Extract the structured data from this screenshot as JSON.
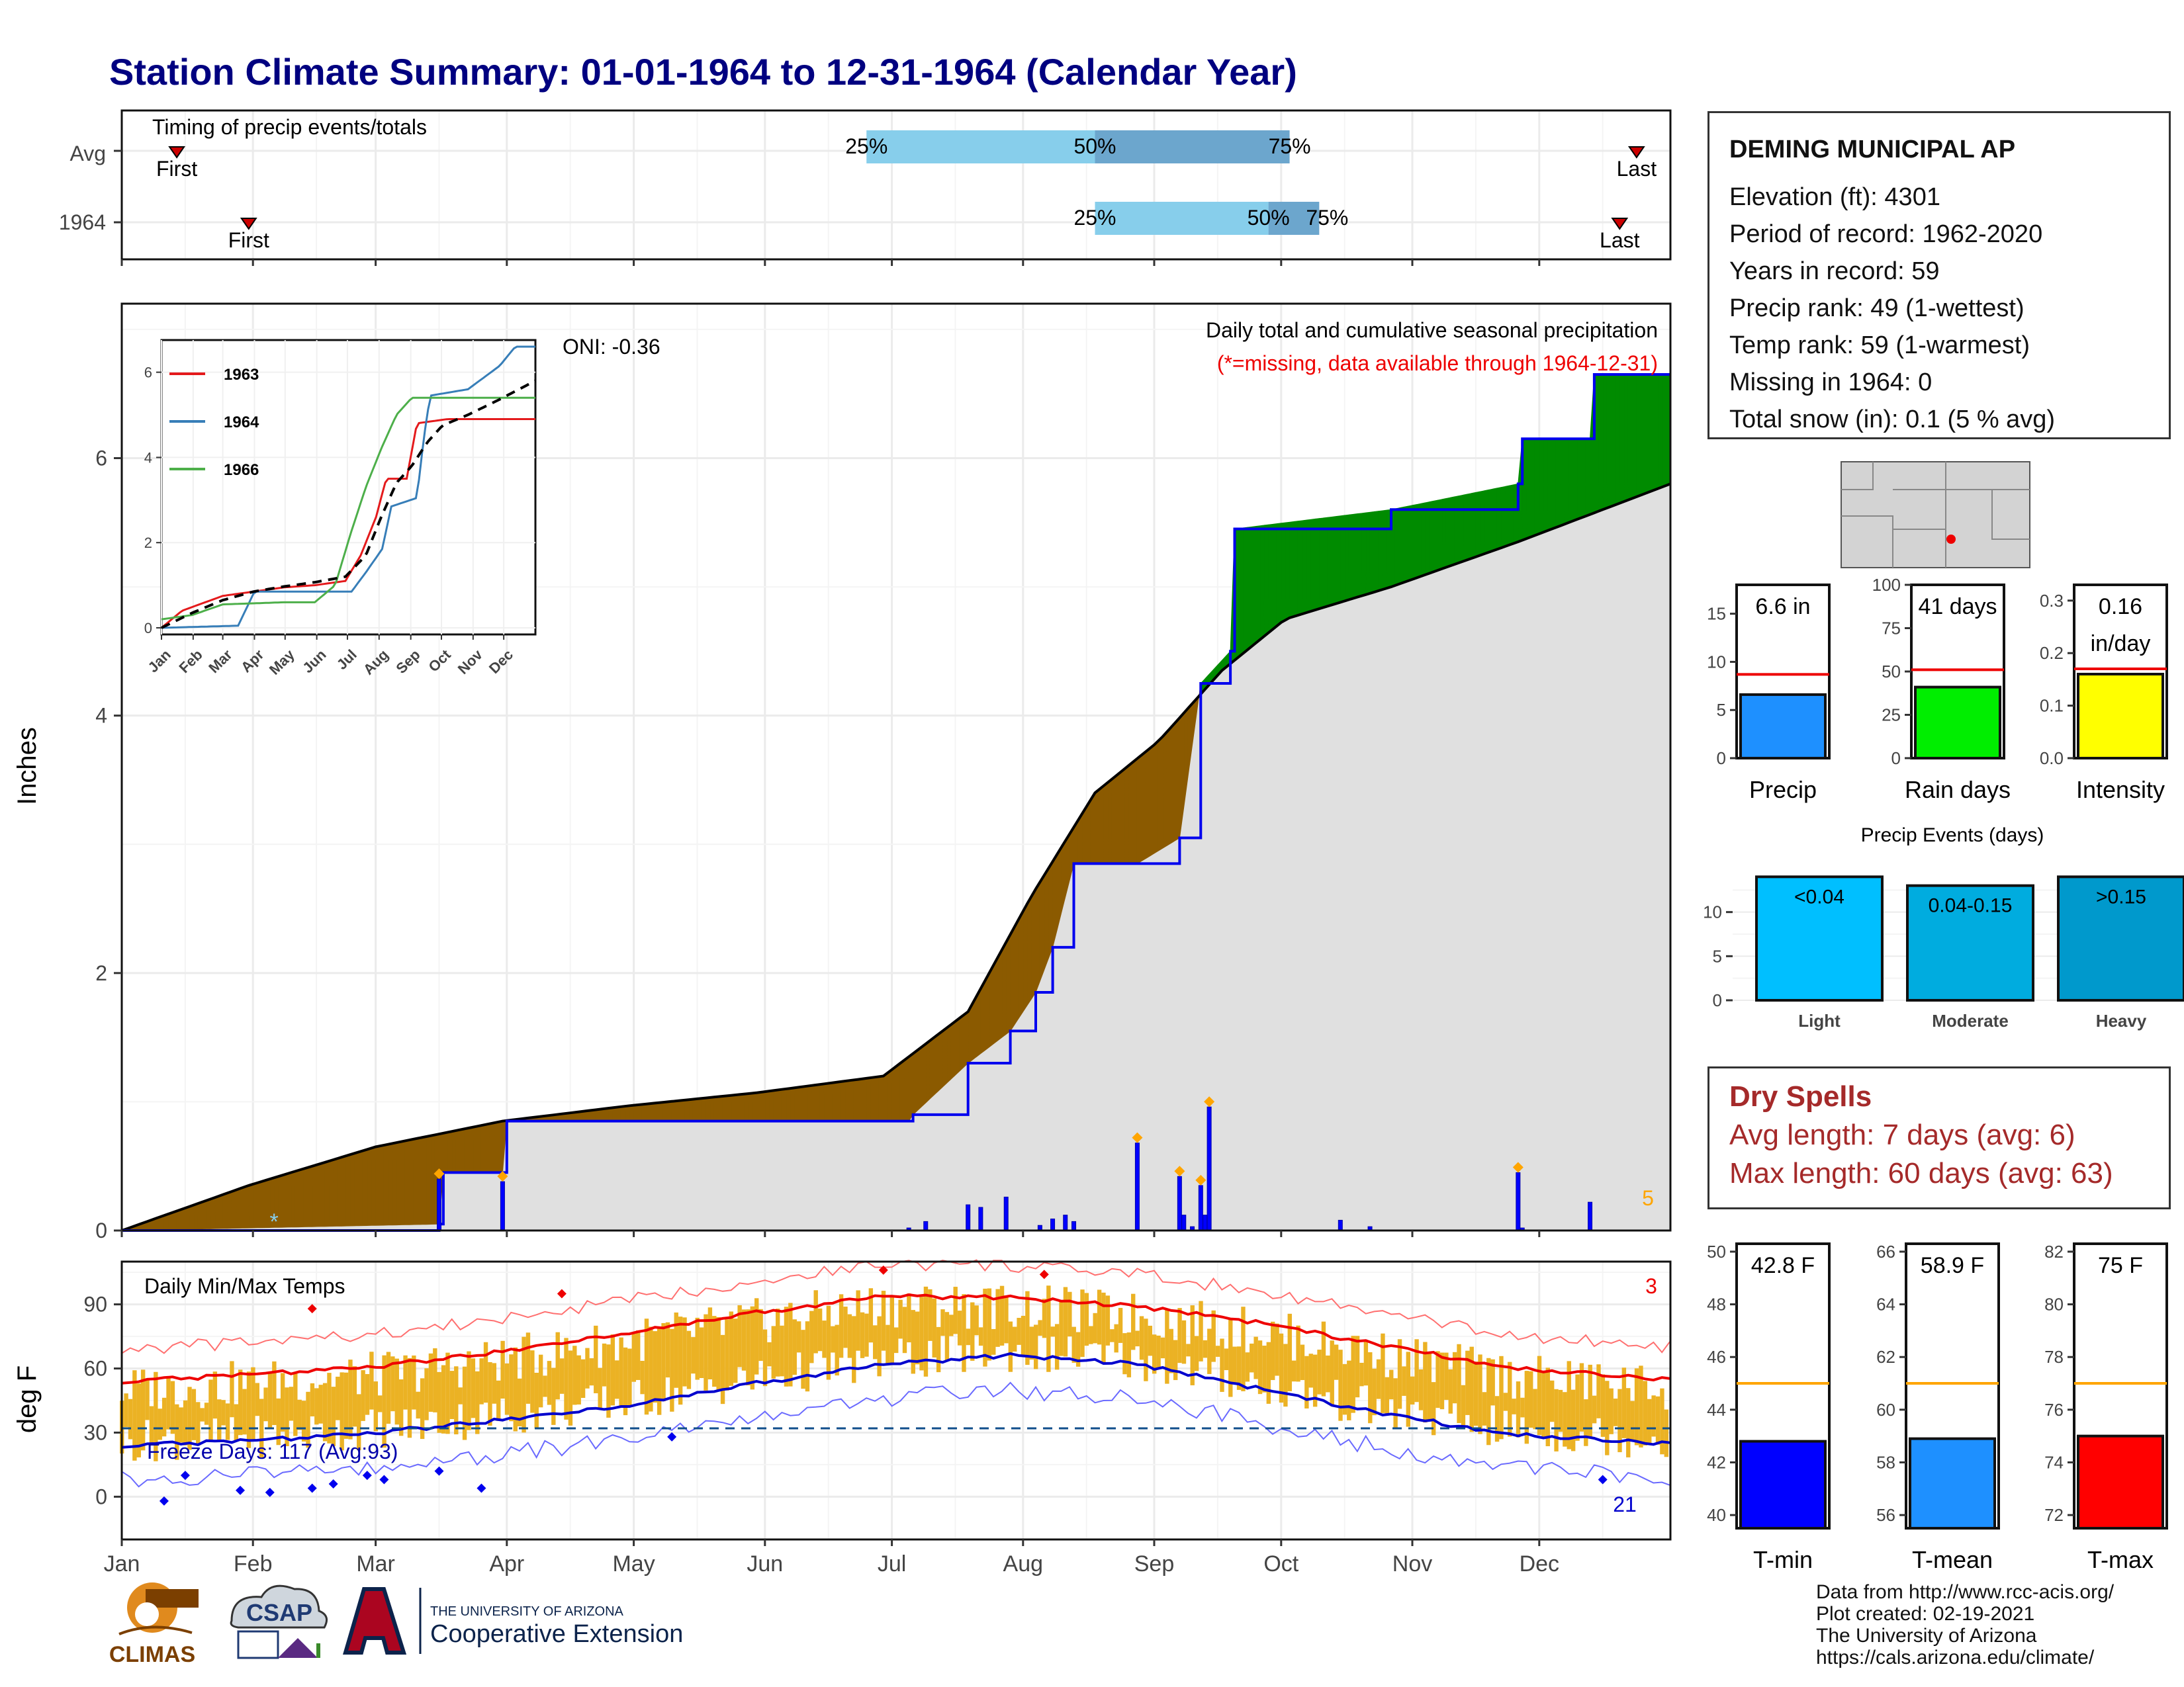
{
  "title": "Station Climate Summary: 01-01-1964 to 12-31-1964 (Calendar Year)",
  "timing": {
    "title": "Timing of precip events/totals",
    "rows": [
      {
        "label": "Avg",
        "first_doy": 13,
        "last_doy": 358,
        "p25_doy": 176,
        "p50_doy": 230,
        "p75_doy": 276
      },
      {
        "label": "1964",
        "first_doy": 30,
        "last_doy": 354,
        "p25_doy": 230,
        "p50_doy": 271,
        "p75_doy": 283
      }
    ],
    "labels": {
      "first": "First",
      "last": "Last",
      "p25": "25%",
      "p50": "50%",
      "p75": "75%"
    }
  },
  "precip_chart": {
    "title": "Daily total and cumulative seasonal precipitation",
    "subtitle": "(*=missing, data available through 1964-12-31)",
    "oni": "ONI: -0.36",
    "ylabel": "Inches",
    "y_ticks": [
      "0",
      "2",
      "4",
      "6"
    ],
    "ylim": [
      0,
      7.2
    ],
    "count_label": "5"
  },
  "chart_data": [
    {
      "type": "area",
      "title": "Daily total and cumulative seasonal precipitation",
      "ylabel": "Inches",
      "ylim": [
        0,
        7.2
      ],
      "series": [
        {
          "name": "Average cumulative",
          "x_doy": [
            0,
            30,
            60,
            90,
            120,
            150,
            180,
            200,
            215,
            230,
            245,
            260,
            275,
            300,
            330,
            366
          ],
          "values": [
            0.0,
            0.35,
            0.65,
            0.85,
            0.97,
            1.07,
            1.2,
            1.7,
            2.6,
            3.4,
            3.8,
            4.35,
            4.75,
            5.0,
            5.35,
            5.8
          ]
        },
        {
          "name": "1964 cumulative",
          "x_doy": [
            0,
            75,
            76,
            90,
            91,
            186,
            187,
            200,
            210,
            216,
            220,
            225,
            240,
            250,
            255,
            262,
            263,
            300,
            330,
            331,
            347,
            348,
            366
          ],
          "values": [
            0.0,
            0.05,
            0.45,
            0.45,
            0.85,
            0.85,
            0.9,
            1.3,
            1.55,
            1.85,
            2.2,
            2.85,
            2.85,
            3.05,
            4.25,
            4.5,
            5.45,
            5.6,
            5.8,
            6.15,
            6.15,
            6.65,
            6.65
          ]
        },
        {
          "name": "Daily precip",
          "x_doy": [
            75,
            90,
            186,
            190,
            200,
            203,
            209,
            217,
            220,
            223,
            225,
            240,
            250,
            251,
            253,
            255,
            256,
            257,
            288,
            295,
            330,
            331,
            347
          ],
          "values": [
            0.4,
            0.38,
            0.02,
            0.07,
            0.2,
            0.18,
            0.26,
            0.04,
            0.09,
            0.12,
            0.07,
            0.68,
            0.42,
            0.12,
            0.03,
            0.35,
            0.12,
            0.96,
            0.08,
            0.03,
            0.45,
            0.02,
            0.22
          ]
        }
      ]
    },
    {
      "type": "line",
      "title": "Daily Min/Max Temps",
      "ylabel": "deg F",
      "ylim": [
        -20,
        110
      ],
      "series": [
        {
          "name": "Normal max",
          "x_doy": [
            0,
            30,
            60,
            90,
            120,
            150,
            180,
            210,
            240,
            270,
            300,
            330,
            366
          ],
          "values": [
            54,
            57,
            61,
            68,
            77,
            86,
            94,
            93,
            89,
            81,
            70,
            60,
            55
          ]
        },
        {
          "name": "Normal min",
          "x_doy": [
            0,
            30,
            60,
            90,
            120,
            150,
            180,
            210,
            240,
            270,
            300,
            330,
            366
          ],
          "values": [
            24,
            26,
            30,
            36,
            43,
            53,
            62,
            66,
            62,
            50,
            38,
            29,
            25
          ]
        }
      ]
    },
    {
      "type": "bar",
      "title": "Precip",
      "categories": [
        "Precip"
      ],
      "values": [
        6.6
      ],
      "avg": 8.7,
      "ylim": [
        0,
        18
      ]
    },
    {
      "type": "bar",
      "title": "Rain days",
      "categories": [
        "Rain days"
      ],
      "values": [
        41
      ],
      "avg": 51,
      "ylim": [
        0,
        100
      ]
    },
    {
      "type": "bar",
      "title": "Intensity",
      "categories": [
        "Intensity"
      ],
      "values": [
        0.16
      ],
      "avg": 0.17,
      "ylim": [
        0,
        0.33
      ]
    },
    {
      "type": "bar",
      "title": "Precip Events (days)",
      "categories": [
        "Light",
        "Moderate",
        "Heavy"
      ],
      "values": [
        14,
        13,
        14
      ],
      "ylim": [
        0,
        15
      ]
    },
    {
      "type": "bar",
      "title": "T-min",
      "categories": [
        "T-min"
      ],
      "values": [
        42.8
      ],
      "avg": 45,
      "ylim": [
        39.5,
        50.3
      ]
    },
    {
      "type": "bar",
      "title": "T-mean",
      "categories": [
        "T-mean"
      ],
      "values": [
        58.9
      ],
      "avg": 61,
      "ylim": [
        55.5,
        66.3
      ]
    },
    {
      "type": "bar",
      "title": "T-max",
      "categories": [
        "T-max"
      ],
      "values": [
        75
      ],
      "avg": 77,
      "ylim": [
        71.5,
        82.3
      ]
    }
  ],
  "inset": {
    "y_ticks": [
      "0",
      "2",
      "4",
      "6"
    ],
    "x_ticks": [
      "Jan",
      "Feb",
      "Mar",
      "Apr",
      "May",
      "Jun",
      "Jul",
      "Aug",
      "Sep",
      "Oct",
      "Nov",
      "Dec"
    ],
    "legend": [
      {
        "name": "1963",
        "color": "#e41a1c"
      },
      {
        "name": "1964",
        "color": "#377eb8"
      },
      {
        "name": "1966",
        "color": "#4daf4a"
      }
    ],
    "series": [
      {
        "name": "1963",
        "x_doy": [
          0,
          20,
          60,
          120,
          150,
          180,
          195,
          210,
          220,
          240,
          250,
          280,
          300,
          366
        ],
        "values": [
          0,
          0.4,
          0.75,
          0.95,
          1.0,
          1.1,
          1.7,
          2.6,
          3.5,
          3.5,
          4.8,
          4.9,
          4.9,
          4.9
        ]
      },
      {
        "name": "1964",
        "x_doy": [
          0,
          75,
          91,
          186,
          200,
          216,
          225,
          250,
          257,
          263,
          300,
          331,
          348,
          366
        ],
        "values": [
          0,
          0.05,
          0.85,
          0.85,
          1.3,
          1.85,
          2.85,
          3.05,
          4.5,
          5.45,
          5.6,
          6.15,
          6.65,
          6.65
        ]
      },
      {
        "name": "1966",
        "x_doy": [
          0,
          30,
          60,
          120,
          150,
          170,
          185,
          200,
          215,
          230,
          245,
          300,
          366
        ],
        "values": [
          0.2,
          0.3,
          0.55,
          0.6,
          0.6,
          1.0,
          2.2,
          3.3,
          4.2,
          5.0,
          5.4,
          5.4,
          5.4
        ]
      },
      {
        "name": "Average",
        "x_doy": [
          0,
          30,
          60,
          90,
          120,
          150,
          180,
          200,
          215,
          230,
          245,
          260,
          275,
          300,
          330,
          366
        ],
        "values": [
          0,
          0.35,
          0.65,
          0.85,
          0.97,
          1.07,
          1.2,
          1.7,
          2.6,
          3.4,
          3.8,
          4.35,
          4.75,
          5.0,
          5.35,
          5.8
        ]
      }
    ]
  },
  "temp_chart": {
    "title": "Daily Min/Max Temps",
    "ylabel": "deg F",
    "y_ticks": [
      "0",
      "30",
      "60",
      "90"
    ],
    "freeze_label": "Freeze Days: 117 (Avg:93)",
    "hot_count": "3",
    "cold_count": "21",
    "months": [
      "Jan",
      "Feb",
      "Mar",
      "Apr",
      "May",
      "Jun",
      "Jul",
      "Aug",
      "Sep",
      "Oct",
      "Nov",
      "Dec"
    ]
  },
  "station": {
    "name": "DEMING MUNICIPAL AP",
    "lines": [
      "Elevation (ft): 4301",
      "Period of record: 1962-2020",
      "Years in record: 59",
      "Precip rank: 49 (1-wettest)",
      "Temp rank: 59 (1-warmest)",
      "Missing in 1964: 0",
      "Total snow (in): 0.1 (5 % avg)"
    ]
  },
  "mini_bars": {
    "precip": {
      "label": "Precip",
      "value_text": "6.6 in",
      "ticks": [
        "0",
        "5",
        "10",
        "15"
      ],
      "color": "#1e90ff"
    },
    "rain_days": {
      "label": "Rain days",
      "value_text": "41 days",
      "ticks": [
        "0",
        "25",
        "50",
        "75",
        "100"
      ],
      "color": "#00ee00"
    },
    "intensity": {
      "label": "Intensity",
      "value_text_1": "0.16",
      "value_text_2": "in/day",
      "ticks": [
        "0.0",
        "0.1",
        "0.2",
        "0.3"
      ],
      "color": "#ffff00"
    }
  },
  "events": {
    "title": "Precip Events (days)",
    "ticks": [
      "0",
      "5",
      "10"
    ],
    "bars": [
      {
        "label": "Light",
        "range": "<0.04",
        "color": "#00bfff"
      },
      {
        "label": "Moderate",
        "range": "0.04-0.15",
        "color": "#00acdf"
      },
      {
        "label": "Heavy",
        "range": ">0.15",
        "color": "#0099cc"
      }
    ]
  },
  "dry_spells": {
    "title": "Dry Spells",
    "avg_length": "Avg length: 7 days (avg: 6)",
    "max_length": "Max length: 60 days (avg: 63)"
  },
  "temp_bars": {
    "tmin": {
      "label": "T-min",
      "value_text": "42.8 F",
      "ticks": [
        "40",
        "42",
        "44",
        "46",
        "48",
        "50"
      ],
      "color": "#0000ff"
    },
    "tmean": {
      "label": "T-mean",
      "value_text": "58.9 F",
      "ticks": [
        "56",
        "58",
        "60",
        "62",
        "64",
        "66"
      ],
      "color": "#1e90ff"
    },
    "tmax": {
      "label": "T-max",
      "value_text": "75 F",
      "ticks": [
        "72",
        "74",
        "76",
        "78",
        "80",
        "82"
      ],
      "color": "#ff0000"
    }
  },
  "credits": [
    "Data from http://www.rcc-acis.org/",
    "Plot created: 02-19-2021",
    "The University of Arizona",
    "https://cals.arizona.edu/climate/"
  ],
  "logos": {
    "climas": "CLIMAS",
    "csap": "CSAP",
    "ua_top": "THE UNIVERSITY OF ARIZONA",
    "ua_bottom": "Cooperative Extension"
  },
  "colors": {
    "brown": "#8b5a00",
    "green": "#008b00",
    "grey_fill": "#e0e0e0",
    "blue_line": "#0000ee",
    "orange_bar": "#ebb224",
    "title_navy": "#000080"
  }
}
